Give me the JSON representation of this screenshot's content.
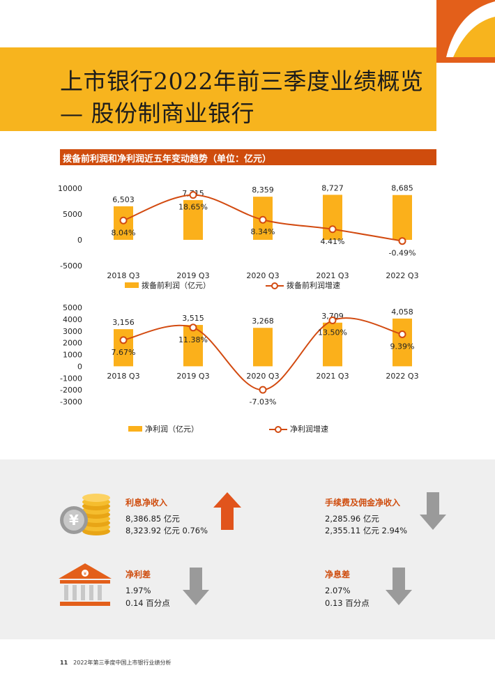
{
  "header": {
    "title_line1": "上市银行2022年前三季度业绩概览",
    "title_line2": "— 股份制商业银行"
  },
  "section": {
    "title": "拨备前利润和净利润近五年变动趋势（单位：亿元）"
  },
  "chart_data": [
    {
      "type": "bar",
      "categories": [
        "2018 Q3",
        "2019 Q3",
        "2020 Q3",
        "2021 Q3",
        "2022 Q3"
      ],
      "series": [
        {
          "name": "拨备前利润（亿元）",
          "kind": "bar",
          "values": [
            6503,
            7715,
            8359,
            8727,
            8685
          ],
          "labels": [
            "6,503",
            "7,715",
            "8,359",
            "8,727",
            "8,685"
          ]
        },
        {
          "name": "拨备前利润增速",
          "kind": "line",
          "values": [
            8.04,
            18.65,
            8.34,
            4.41,
            -0.49
          ],
          "labels": [
            "8.04%",
            "18.65%",
            "8.34%",
            "4.41%",
            "-0.49%"
          ]
        }
      ],
      "yticks": [
        "10000",
        "5000",
        "0",
        "-5000"
      ],
      "ylim": [
        -5000,
        10000
      ],
      "legend_position": "bottom",
      "colors": {
        "bar": "#fbb01b",
        "line": "#d24a10"
      }
    },
    {
      "type": "bar",
      "categories": [
        "2018 Q3",
        "2019 Q3",
        "2020 Q3",
        "2021 Q3",
        "2022 Q3"
      ],
      "series": [
        {
          "name": "净利润（亿元）",
          "kind": "bar",
          "values": [
            3156,
            3515,
            3268,
            3709,
            4058
          ],
          "labels": [
            "3,156",
            "3,515",
            "3,268",
            "3,709",
            "4,058"
          ]
        },
        {
          "name": "净利润增速",
          "kind": "line",
          "values": [
            7.67,
            11.38,
            -7.03,
            13.5,
            9.39
          ],
          "labels": [
            "7.67%",
            "11.38%",
            "-7.03%",
            "13.50%",
            "9.39%"
          ]
        }
      ],
      "yticks": [
        "5000",
        "4000",
        "3000",
        "2000",
        "1000",
        "0",
        "-1000",
        "-2000",
        "-3000"
      ],
      "ylim": [
        -3000,
        5000
      ],
      "legend_position": "bottom",
      "colors": {
        "bar": "#fbb01b",
        "line": "#d24a10"
      }
    }
  ],
  "kpis": [
    {
      "title": "利息净收入",
      "line1": "8,386.85 亿元",
      "line2": "8,323.92 亿元  0.76%",
      "trend": "up",
      "icon": "coins-yuan-icon"
    },
    {
      "title": "手续费及佣金净收入",
      "line1": "2,285.96 亿元",
      "line2": "2,355.11 亿元  2.94%",
      "trend": "down",
      "icon": "none"
    },
    {
      "title": "净利差",
      "line1": "1.97%",
      "line2": "0.14 百分点",
      "trend": "down",
      "icon": "bank-icon"
    },
    {
      "title": "净息差",
      "line1": "2.07%",
      "line2": "0.13 百分点",
      "trend": "down",
      "icon": "none"
    }
  ],
  "colors": {
    "accent_orange": "#cf4c0d",
    "band_yellow": "#f7b41e",
    "arrow_up": "#e1541c",
    "arrow_down": "#9a9a9a"
  },
  "footer": {
    "page": "11",
    "text": "2022年第三季度中国上市银行业绩分析"
  }
}
